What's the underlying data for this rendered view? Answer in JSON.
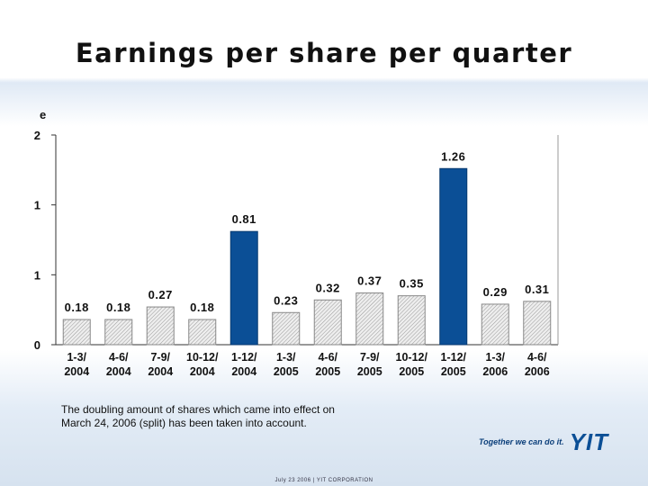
{
  "title": "Earnings per share per quarter",
  "chart_data": {
    "type": "bar",
    "unit_label": "e",
    "categories": [
      "1-3/ 2004",
      "4-6/ 2004",
      "7-9/ 2004",
      "10-12/ 2004",
      "1-12/ 2004",
      "1-3/ 2005",
      "4-6/ 2005",
      "7-9/ 2005",
      "10-12/ 2005",
      "1-12/ 2005",
      "1-3/ 2006",
      "4-6/ 2006"
    ],
    "values": [
      0.18,
      0.18,
      0.27,
      0.18,
      0.81,
      0.23,
      0.32,
      0.37,
      0.35,
      1.26,
      0.29,
      0.31
    ],
    "value_labels": [
      "0.18",
      "0.18",
      "0.27",
      "0.18",
      "0.81",
      "0.23",
      "0.32",
      "0.37",
      "0.35",
      "1.26",
      "0.29",
      "0.31"
    ],
    "annual_totals": [
      false,
      false,
      false,
      false,
      true,
      false,
      false,
      false,
      false,
      true,
      false,
      false
    ],
    "ylim": [
      0,
      1.5
    ],
    "yticks": [
      0,
      0.5,
      1,
      1.5
    ],
    "ytick_labels": [
      "0",
      "1",
      "1",
      "2"
    ],
    "quarter_style": "hatched-grey",
    "total_color": "#0b4f96",
    "grid": false
  },
  "footnote": "The doubling amount of shares which came into effect on March 24, 2006 (split) has been taken into account.",
  "logo": {
    "slogan": "Together we can do it.",
    "wordmark": "YIT"
  },
  "footer": "July 23 2006 | YIT CORPORATION"
}
